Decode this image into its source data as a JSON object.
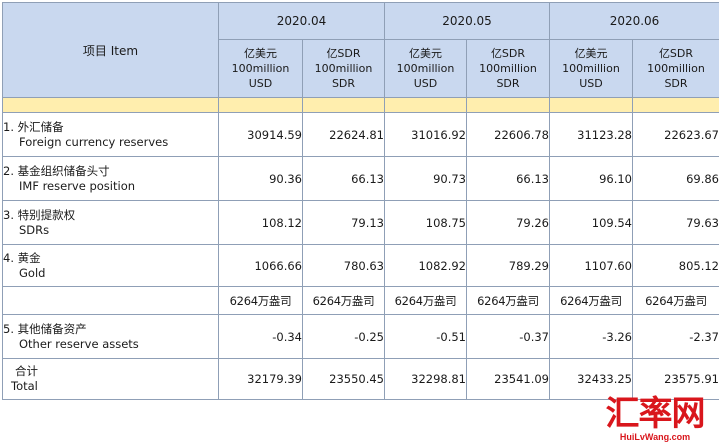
{
  "header": {
    "item_label": "项目  Item",
    "periods": [
      "2020.04",
      "2020.05",
      "2020.06"
    ],
    "units": {
      "usd": [
        "亿美元",
        "100million",
        "USD"
      ],
      "sdr": [
        "亿SDR",
        "100million",
        "SDR"
      ]
    }
  },
  "rows": [
    {
      "zh": "1. 外汇储备",
      "en": "Foreign currency reserves",
      "values": [
        "30914.59",
        "22624.81",
        "31016.92",
        "22606.78",
        "31123.28",
        "22623.67"
      ]
    },
    {
      "zh": "2. 基金组织储备头寸",
      "en": "IMF reserve position",
      "values": [
        "90.36",
        "66.13",
        "90.73",
        "66.13",
        "96.10",
        "69.86"
      ]
    },
    {
      "zh": "3. 特别提款权",
      "en": "SDRs",
      "values": [
        "108.12",
        "79.13",
        "108.75",
        "79.26",
        "109.54",
        "79.63"
      ]
    },
    {
      "zh": "4. 黄金",
      "en": "Gold",
      "values": [
        "1066.66",
        "780.63",
        "1082.92",
        "789.29",
        "1107.60",
        "805.12"
      ]
    }
  ],
  "gold_weight": [
    "6264万盎司",
    "6264万盎司",
    "6264万盎司",
    "6264万盎司",
    "6264万盎司",
    "6264万盎司"
  ],
  "other": {
    "zh": "5. 其他储备资产",
    "en": "Other reserve assets",
    "values": [
      "-0.34",
      "-0.25",
      "-0.51",
      "-0.37",
      "-3.26",
      "-2.37"
    ]
  },
  "total": {
    "zh": "合计",
    "en": "Total",
    "values": [
      "32179.39",
      "23550.45",
      "32298.81",
      "23541.09",
      "32433.25",
      "23575.91"
    ]
  },
  "watermark": {
    "name": "汇率网",
    "url": "HuiLvWang.com"
  }
}
